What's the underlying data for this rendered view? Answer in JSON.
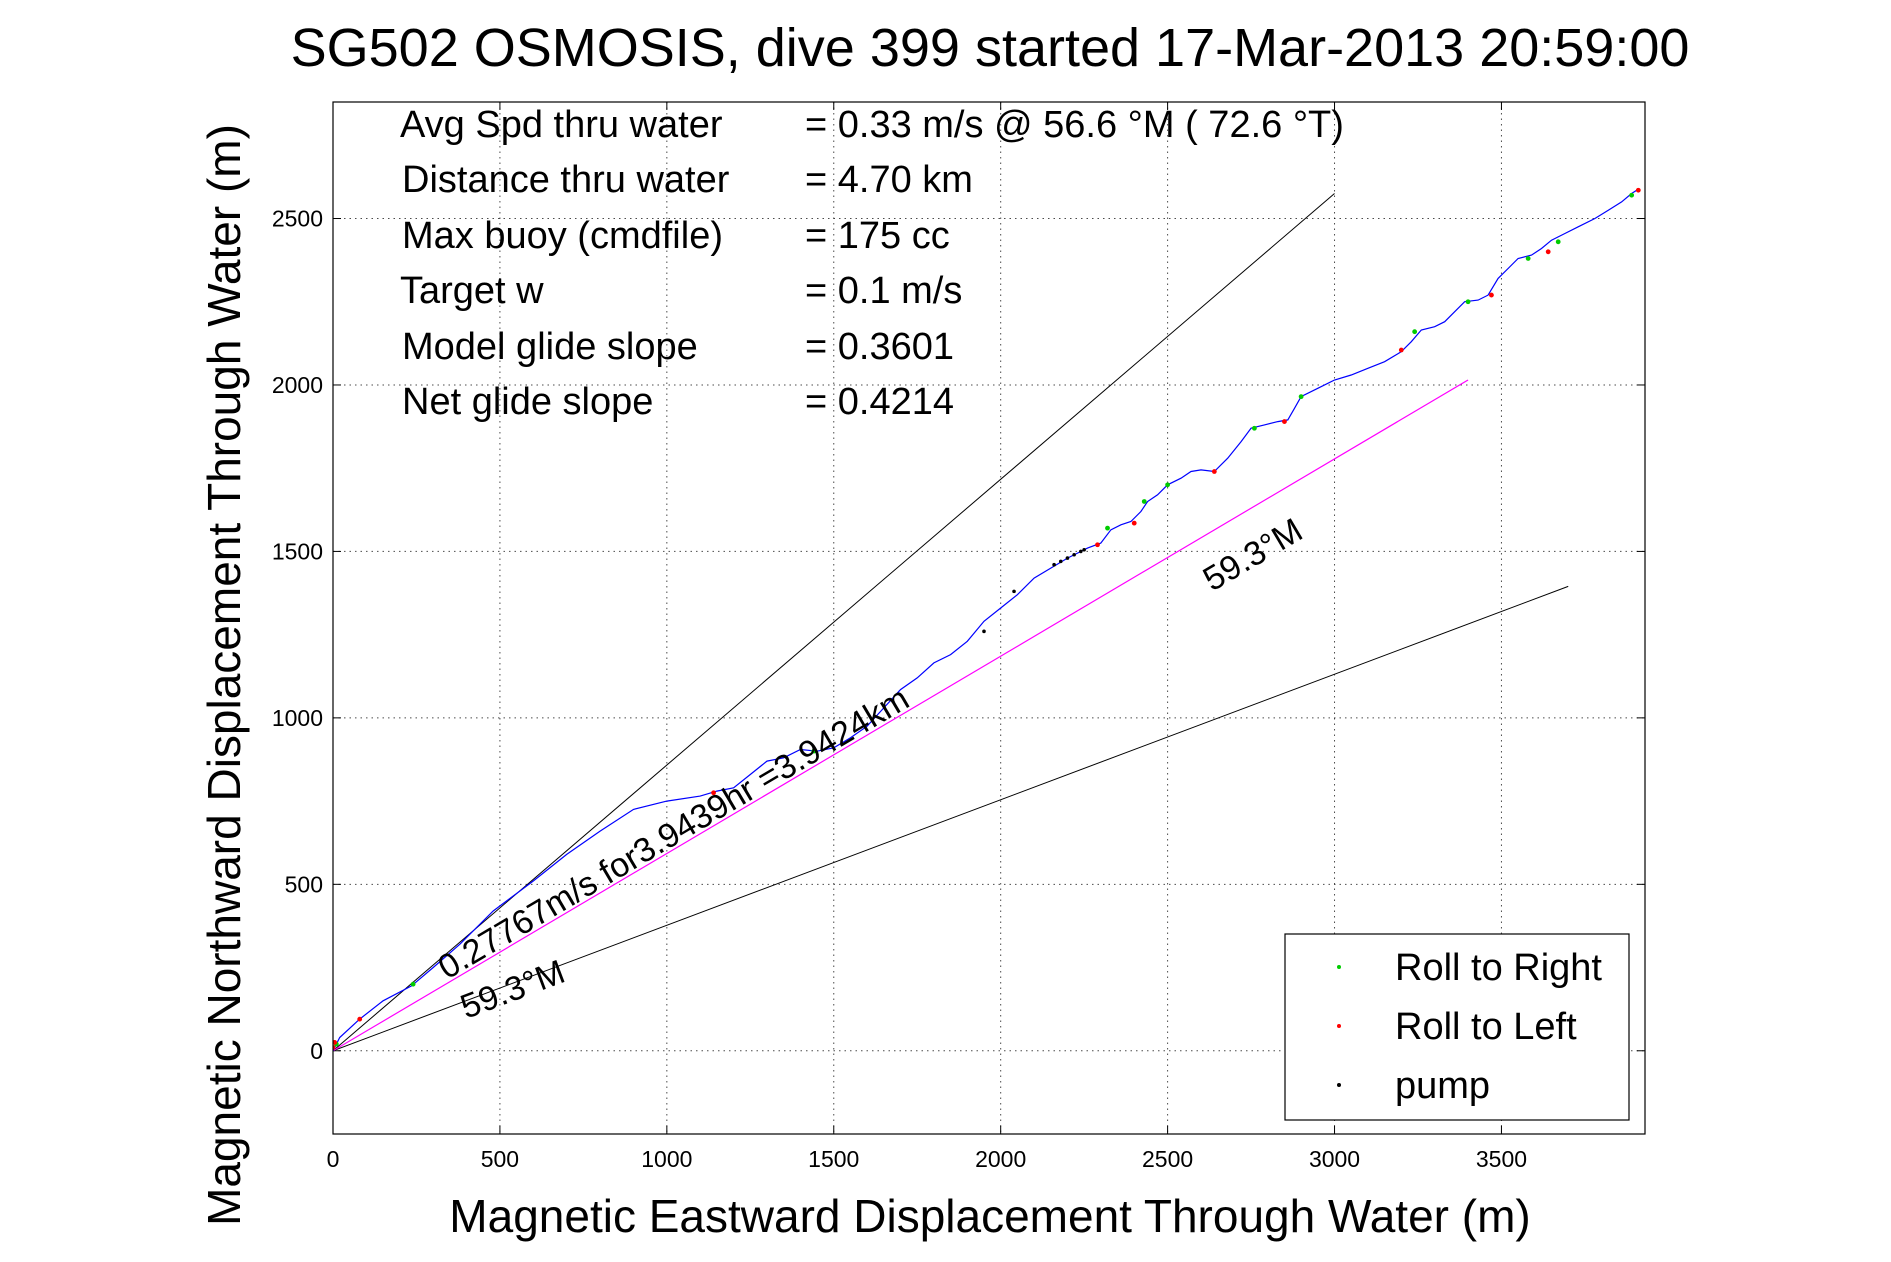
{
  "chart_data": {
    "type": "line",
    "title": "SG502 OSMOSIS, dive 399 started 17-Mar-2013 20:59:00",
    "xlabel": "Magnetic Eastward Displacement Through Water (m)",
    "ylabel": "Magnetic Northward Displacement Through Water (m)",
    "xlim": [
      0,
      3930
    ],
    "ylim": [
      -250,
      2850
    ],
    "xticks": [
      0,
      500,
      1000,
      1500,
      2000,
      2500,
      3000,
      3500
    ],
    "yticks": [
      0,
      500,
      1000,
      1500,
      2000,
      2500
    ],
    "grid": true,
    "legend_position": "bottom-right",
    "legend": [
      {
        "label": "Roll to Right",
        "color": "#00cc00"
      },
      {
        "label": "Roll to Left",
        "color": "#ff0000"
      },
      {
        "label": "pump",
        "color": "#000000"
      }
    ],
    "info_lines": [
      {
        "label": "Avg Spd thru water",
        "value": "=  0.33 m/s @  56.6 °M ( 72.6 °T)"
      },
      {
        "label": "Distance thru water",
        "value": "=  4.70 km"
      },
      {
        "label": "Max buoy (cmdfile)",
        "value": "= 175 cc"
      },
      {
        "label": "Target w",
        "value": "= 0.1 m/s"
      },
      {
        "label": "Model glide slope",
        "value": "= 0.3601"
      },
      {
        "label": "Net glide slope",
        "value": "= 0.4214"
      }
    ],
    "annotations": {
      "net_vector_label": "0.27767m/s for3.9439hr =3.9424km",
      "heading_label_upper": "59.3°M",
      "heading_label_lower": "59.3°M"
    },
    "reference_lines": [
      {
        "name": "course-upper-bound",
        "x": [
          0,
          3000
        ],
        "y": [
          0,
          2575
        ],
        "color": "#000000"
      },
      {
        "name": "course-lower-bound",
        "x": [
          0,
          3700
        ],
        "y": [
          0,
          1395
        ],
        "color": "#000000"
      },
      {
        "name": "net-displacement",
        "x": [
          0,
          3400
        ],
        "y": [
          0,
          2015
        ],
        "color": "#ff00ff"
      }
    ],
    "series": [
      {
        "name": "track",
        "color": "#0000ff",
        "x": [
          0,
          20,
          80,
          150,
          235,
          300,
          380,
          480,
          600,
          700,
          800,
          900,
          1000,
          1100,
          1150,
          1200,
          1250,
          1300,
          1350,
          1400,
          1450,
          1500,
          1550,
          1600,
          1650,
          1700,
          1750,
          1800,
          1850,
          1900,
          1950,
          2000,
          2050,
          2100,
          2150,
          2200,
          2230,
          2260,
          2300,
          2330,
          2360,
          2390,
          2420,
          2440,
          2470,
          2500,
          2540,
          2570,
          2600,
          2640,
          2680,
          2720,
          2750,
          2790,
          2830,
          2860,
          2880,
          2900,
          2950,
          3000,
          3050,
          3100,
          3150,
          3200,
          3230,
          3260,
          3300,
          3330,
          3360,
          3390,
          3430,
          3460,
          3490,
          3520,
          3550,
          3590,
          3620,
          3650,
          3690,
          3730,
          3780,
          3820,
          3860,
          3890,
          3905
        ],
        "y": [
          0,
          40,
          95,
          150,
          195,
          250,
          320,
          420,
          510,
          590,
          660,
          725,
          750,
          765,
          780,
          790,
          830,
          870,
          880,
          905,
          900,
          910,
          940,
          975,
          1030,
          1085,
          1120,
          1165,
          1190,
          1230,
          1290,
          1330,
          1370,
          1420,
          1450,
          1480,
          1495,
          1510,
          1525,
          1565,
          1580,
          1590,
          1620,
          1650,
          1670,
          1700,
          1720,
          1740,
          1745,
          1740,
          1780,
          1830,
          1870,
          1880,
          1890,
          1895,
          1930,
          1965,
          1990,
          2015,
          2030,
          2050,
          2070,
          2100,
          2130,
          2165,
          2175,
          2190,
          2220,
          2250,
          2255,
          2270,
          2320,
          2350,
          2380,
          2390,
          2410,
          2435,
          2455,
          2475,
          2500,
          2525,
          2550,
          2575,
          2585
        ]
      }
    ],
    "markers": {
      "roll_right": {
        "x": [
          10,
          240,
          1440,
          2320,
          2430,
          2500,
          2760,
          2900,
          3240,
          3400,
          3580,
          3670,
          3890
        ],
        "y": [
          20,
          200,
          900,
          1570,
          1650,
          1700,
          1870,
          1965,
          2160,
          2250,
          2380,
          2430,
          2570
        ]
      },
      "roll_left": {
        "x": [
          0,
          5,
          80,
          1140,
          2290,
          2400,
          2640,
          2850,
          3200,
          3470,
          3640,
          3910
        ],
        "y": [
          10,
          25,
          95,
          775,
          1520,
          1585,
          1740,
          1890,
          2105,
          2270,
          2400,
          2585
        ]
      },
      "pump": {
        "x": [
          2160,
          2180,
          2200,
          2220,
          2240,
          2250,
          1950,
          2040
        ],
        "y": [
          1460,
          1470,
          1480,
          1490,
          1500,
          1505,
          1260,
          1380
        ]
      }
    }
  }
}
